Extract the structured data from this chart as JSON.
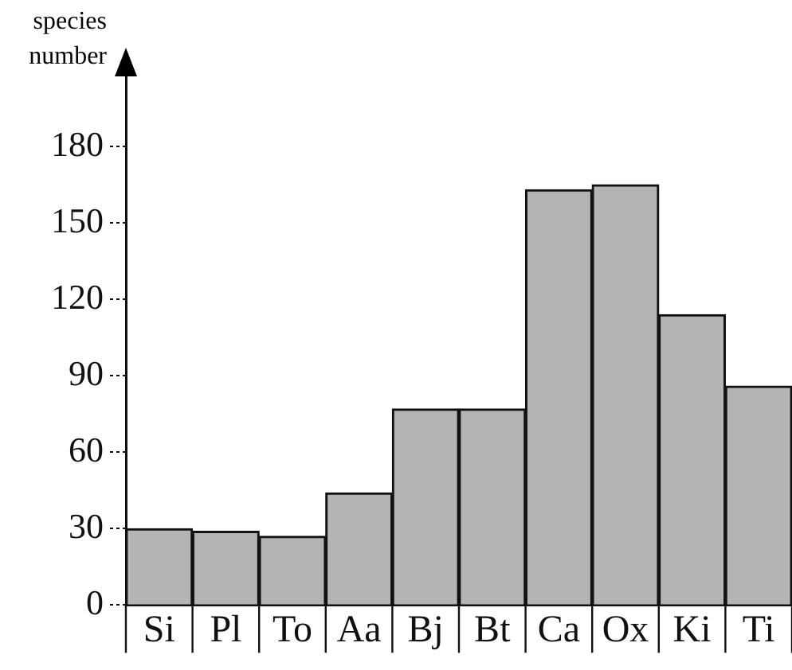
{
  "chart_data": {
    "type": "bar",
    "ylabel": "species number",
    "categories": [
      "Si",
      "Pl",
      "To",
      "Aa",
      "Bj",
      "Bt",
      "Ca",
      "Ox",
      "Ki",
      "Ti"
    ],
    "values": [
      30,
      29,
      27,
      44,
      77,
      77,
      163,
      165,
      114,
      86
    ],
    "color": "#b4b4b4",
    "ylim": [
      0,
      210
    ],
    "yticks": [
      0,
      30,
      60,
      90,
      120,
      150,
      180
    ],
    "grid": false,
    "legend": false
  }
}
